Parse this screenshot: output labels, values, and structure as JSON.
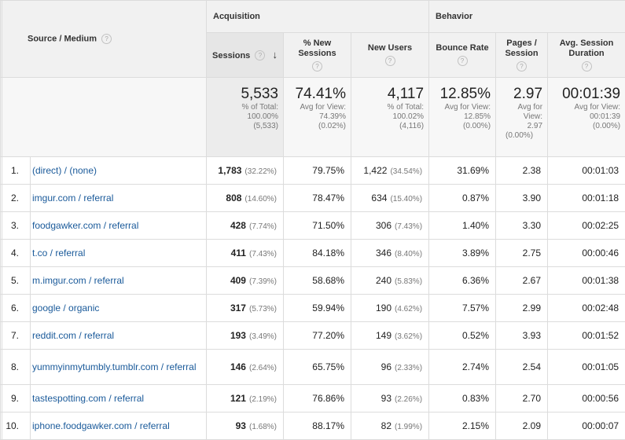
{
  "header": {
    "source_medium": "Source / Medium",
    "group_acquisition": "Acquisition",
    "group_behavior": "Behavior",
    "sessions": "Sessions",
    "pct_new_sessions": "% New Sessions",
    "new_users": "New Users",
    "bounce_rate": "Bounce Rate",
    "pages_session": "Pages / Session",
    "avg_session_duration": "Avg. Session Duration",
    "help_glyph": "?",
    "sort_glyph": "↓"
  },
  "totals": {
    "sessions": {
      "value": "5,533",
      "l1": "% of Total:",
      "l2": "100.00%",
      "l3": "(5,533)"
    },
    "pct_new_sessions": {
      "value": "74.41%",
      "l1": "Avg for View:",
      "l2": "74.39%",
      "l3": "(0.02%)"
    },
    "new_users": {
      "value": "4,117",
      "l1": "% of Total:",
      "l2": "100.02%",
      "l3": "(4,116)"
    },
    "bounce_rate": {
      "value": "12.85%",
      "l1": "Avg for View:",
      "l2": "12.85%",
      "l3": "(0.00%)"
    },
    "pages_session": {
      "value": "2.97",
      "l1": "Avg for",
      "l2": "View:",
      "l3": "2.97",
      "l4": "(0.00%)"
    },
    "avg_session_duration": {
      "value": "00:01:39",
      "l1": "Avg for View:",
      "l2": "00:01:39",
      "l3": "(0.00%)"
    }
  },
  "rows": [
    {
      "idx": "1.",
      "source": "(direct) / (none)",
      "sessions": "1,783",
      "sessions_pct": "(32.22%)",
      "pct_new": "79.75%",
      "new_users": "1,422",
      "new_users_pct": "(34.54%)",
      "bounce": "31.69%",
      "pages": "2.38",
      "duration": "00:01:03"
    },
    {
      "idx": "2.",
      "source": "imgur.com / referral",
      "sessions": "808",
      "sessions_pct": "(14.60%)",
      "pct_new": "78.47%",
      "new_users": "634",
      "new_users_pct": "(15.40%)",
      "bounce": "0.87%",
      "pages": "3.90",
      "duration": "00:01:18"
    },
    {
      "idx": "3.",
      "source": "foodgawker.com / referral",
      "sessions": "428",
      "sessions_pct": "(7.74%)",
      "pct_new": "71.50%",
      "new_users": "306",
      "new_users_pct": "(7.43%)",
      "bounce": "1.40%",
      "pages": "3.30",
      "duration": "00:02:25"
    },
    {
      "idx": "4.",
      "source": "t.co / referral",
      "sessions": "411",
      "sessions_pct": "(7.43%)",
      "pct_new": "84.18%",
      "new_users": "346",
      "new_users_pct": "(8.40%)",
      "bounce": "3.89%",
      "pages": "2.75",
      "duration": "00:00:46"
    },
    {
      "idx": "5.",
      "source": "m.imgur.com / referral",
      "sessions": "409",
      "sessions_pct": "(7.39%)",
      "pct_new": "58.68%",
      "new_users": "240",
      "new_users_pct": "(5.83%)",
      "bounce": "6.36%",
      "pages": "2.67",
      "duration": "00:01:38"
    },
    {
      "idx": "6.",
      "source": "google / organic",
      "sessions": "317",
      "sessions_pct": "(5.73%)",
      "pct_new": "59.94%",
      "new_users": "190",
      "new_users_pct": "(4.62%)",
      "bounce": "7.57%",
      "pages": "2.99",
      "duration": "00:02:48"
    },
    {
      "idx": "7.",
      "source": "reddit.com / referral",
      "sessions": "193",
      "sessions_pct": "(3.49%)",
      "pct_new": "77.20%",
      "new_users": "149",
      "new_users_pct": "(3.62%)",
      "bounce": "0.52%",
      "pages": "3.93",
      "duration": "00:01:52"
    },
    {
      "idx": "8.",
      "source": "yummyinmytumbly.tumblr.com / referral",
      "sessions": "146",
      "sessions_pct": "(2.64%)",
      "pct_new": "65.75%",
      "new_users": "96",
      "new_users_pct": "(2.33%)",
      "bounce": "2.74%",
      "pages": "2.54",
      "duration": "00:01:05"
    },
    {
      "idx": "9.",
      "source": "tastespotting.com / referral",
      "sessions": "121",
      "sessions_pct": "(2.19%)",
      "pct_new": "76.86%",
      "new_users": "93",
      "new_users_pct": "(2.26%)",
      "bounce": "0.83%",
      "pages": "2.70",
      "duration": "00:00:56"
    },
    {
      "idx": "10.",
      "source": "iphone.foodgawker.com / referral",
      "sessions": "93",
      "sessions_pct": "(1.68%)",
      "pct_new": "88.17%",
      "new_users": "82",
      "new_users_pct": "(1.99%)",
      "bounce": "2.15%",
      "pages": "2.09",
      "duration": "00:00:07"
    }
  ],
  "colors": {
    "link": "#1a5a9a",
    "header_bg": "#f1f1f1",
    "sorted_bg": "#e6e6e6",
    "border": "#dcdcdc"
  }
}
